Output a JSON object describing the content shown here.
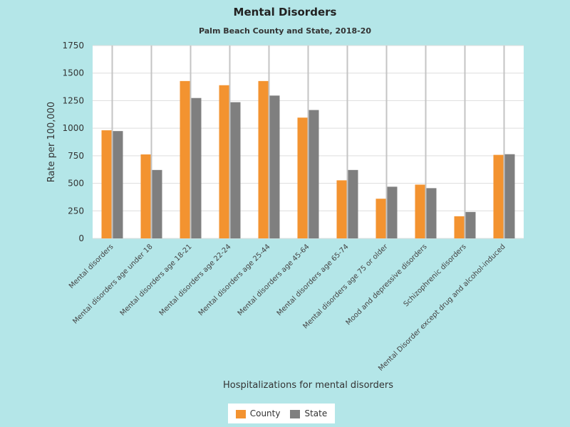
{
  "chart_data": {
    "type": "bar",
    "title": "Mental Disorders",
    "subtitle": "Palm Beach County and State, 2018-20",
    "xlabel": "Hospitalizations for mental disorders",
    "ylabel": "Rate per 100,000",
    "ylim": [
      0,
      1750
    ],
    "yticks": [
      0,
      250,
      500,
      750,
      1000,
      1250,
      1500,
      1750
    ],
    "grid": true,
    "legend_position": "bottom",
    "categories": [
      "Mental disorders",
      "Mental disorders age under 18",
      "Mental disorders age 18-21",
      "Mental disorders age 22-24",
      "Mental disorders age 25-44",
      "Mental disorders age 45-64",
      "Mental disorders age 65-74",
      "Mental disorders age 75 or older",
      "Mood and depressive disorders",
      "Schizophrenic disorders",
      "Mental Disorder except drug and alcohol-induced"
    ],
    "series": [
      {
        "name": "County",
        "color": "#f39330",
        "values": [
          981,
          762,
          1428,
          1390,
          1428,
          1096,
          527,
          360,
          488,
          201,
          758
        ]
      },
      {
        "name": "State",
        "color": "#7f7f7f",
        "values": [
          974,
          621,
          1274,
          1236,
          1296,
          1165,
          621,
          469,
          456,
          240,
          764
        ]
      }
    ]
  }
}
